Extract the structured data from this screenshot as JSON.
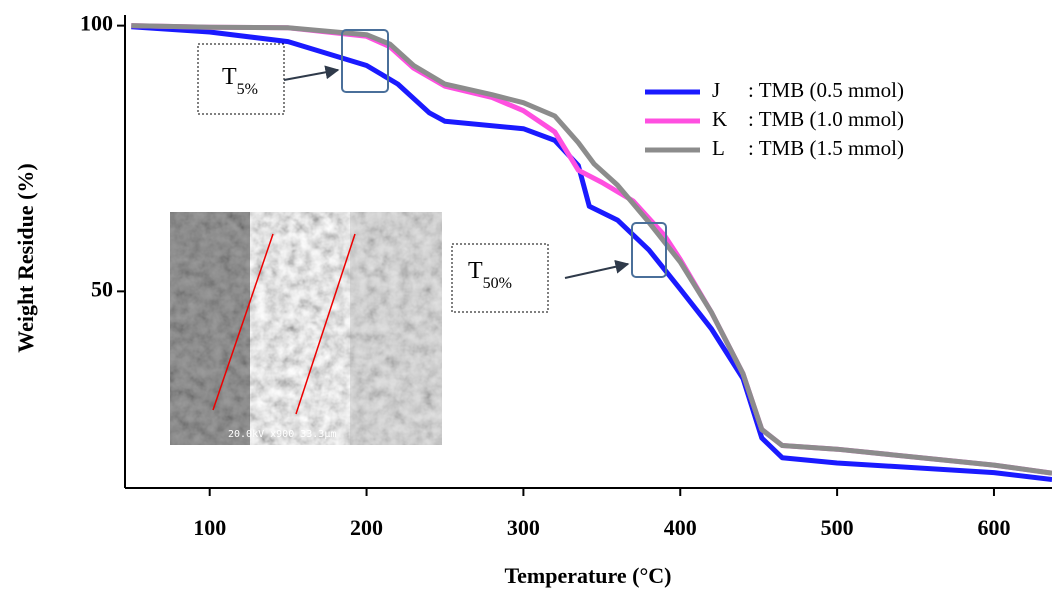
{
  "chart_data": {
    "type": "line",
    "x_label": "Temperature (°C)",
    "y_label": "Weight Residue (%)",
    "xlim": [
      46,
      637
    ],
    "ylim": [
      13,
      102
    ],
    "xticks": [
      100,
      200,
      300,
      400,
      500,
      600
    ],
    "yticks": [
      50,
      100
    ],
    "legend_position": "upper right",
    "series": [
      {
        "name": "J",
        "label": ": TMB (0.5 mmol)",
        "color": "#1a1aff",
        "x": [
          50,
          100,
          150,
          200,
          220,
          240,
          250,
          300,
          320,
          335,
          342,
          360,
          380,
          400,
          420,
          440,
          452,
          465,
          500,
          600,
          637
        ],
        "values": [
          99.8,
          98.8,
          97,
          92.5,
          89,
          83.6,
          82,
          80.6,
          78.4,
          73.7,
          66,
          63.4,
          57.8,
          50.4,
          42.9,
          33.6,
          22.4,
          18.7,
          17.7,
          15.9,
          14.6
        ]
      },
      {
        "name": "K",
        "label": ": TMB (1.0 mmol)",
        "color": "#ff4fe0",
        "x": [
          50,
          100,
          150,
          200,
          215,
          230,
          250,
          280,
          300,
          320,
          335,
          350,
          370,
          390,
          400,
          420,
          440,
          452,
          465,
          500,
          600,
          637
        ],
        "values": [
          100,
          99.7,
          99.6,
          98,
          96,
          92,
          88.6,
          86.5,
          84,
          80,
          72.8,
          70.5,
          67,
          60.5,
          56,
          46,
          34.5,
          24,
          21,
          20.3,
          17.3,
          15.8
        ]
      },
      {
        "name": "L",
        "label": ": TMB (1.5 mmol)",
        "color": "#8c8c8c",
        "x": [
          50,
          100,
          150,
          200,
          215,
          230,
          250,
          280,
          300,
          320,
          335,
          345,
          360,
          380,
          400,
          420,
          440,
          452,
          465,
          500,
          600,
          637
        ],
        "values": [
          100,
          99.7,
          99.6,
          98.3,
          96.5,
          92.5,
          89,
          87,
          85.5,
          83,
          78,
          74,
          70,
          63,
          55.5,
          46,
          34.5,
          24,
          21,
          20.3,
          17.3,
          15.8
        ]
      }
    ],
    "annotations": [
      {
        "text": "T",
        "sub": "5%"
      },
      {
        "text": "T",
        "sub": "50%"
      }
    ],
    "inset_caption": "20.0kV  x900  33.3µm"
  }
}
